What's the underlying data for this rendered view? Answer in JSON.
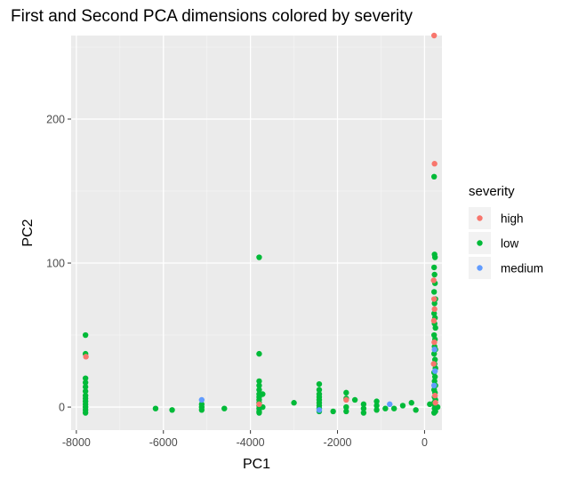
{
  "chart_data": {
    "type": "scatter",
    "title": "First and Second PCA dimensions colored by severity",
    "xlabel": "PC1",
    "ylabel": "PC2",
    "xlim": [
      -8120,
      400
    ],
    "ylim": [
      -16,
      258
    ],
    "x_ticks": [
      -8000,
      -6000,
      -4000,
      -2000,
      0
    ],
    "x_tick_labels": [
      "-8000",
      "-6000",
      "-4000",
      "-2000",
      "0"
    ],
    "y_ticks": [
      0,
      100,
      200
    ],
    "y_tick_labels": [
      "0",
      "100",
      "200"
    ],
    "grid": true,
    "legend": {
      "title": "severity",
      "placement": "right",
      "entries": [
        {
          "label": "high",
          "color": "#F8766D"
        },
        {
          "label": "low",
          "color": "#00BA38"
        },
        {
          "label": "medium",
          "color": "#619CFF"
        }
      ]
    },
    "series": [
      {
        "name": "high",
        "color": "#F8766D",
        "points": [
          [
            220,
            258
          ],
          [
            230,
            169
          ],
          [
            210,
            88
          ],
          [
            220,
            75
          ],
          [
            230,
            68
          ],
          [
            215,
            60
          ],
          [
            225,
            45
          ],
          [
            210,
            30
          ],
          [
            -7780,
            35
          ],
          [
            -1800,
            5
          ],
          [
            -3800,
            2
          ],
          [
            240,
            8
          ],
          [
            250,
            3
          ]
        ]
      },
      {
        "name": "low",
        "color": "#00BA38",
        "points": [
          [
            -7790,
            50
          ],
          [
            -7790,
            37
          ],
          [
            -7790,
            20
          ],
          [
            -7790,
            17
          ],
          [
            -7790,
            14
          ],
          [
            -7790,
            11
          ],
          [
            -7790,
            8
          ],
          [
            -7790,
            6
          ],
          [
            -7790,
            4
          ],
          [
            -7790,
            2
          ],
          [
            -7790,
            0
          ],
          [
            -7790,
            -2
          ],
          [
            -7790,
            -4
          ],
          [
            -6180,
            -1
          ],
          [
            -5800,
            -2
          ],
          [
            -5120,
            2
          ],
          [
            -5120,
            0
          ],
          [
            -5120,
            -2
          ],
          [
            -4600,
            -1
          ],
          [
            -3800,
            104
          ],
          [
            -3800,
            37
          ],
          [
            -3800,
            18
          ],
          [
            -3800,
            15
          ],
          [
            -3800,
            12
          ],
          [
            -3800,
            9
          ],
          [
            -3800,
            7
          ],
          [
            -3800,
            5
          ],
          [
            -3800,
            3
          ],
          [
            -3800,
            1
          ],
          [
            -3800,
            -1
          ],
          [
            -3800,
            -3
          ],
          [
            -3800,
            -4
          ],
          [
            -3720,
            9
          ],
          [
            -3720,
            0
          ],
          [
            -3000,
            3
          ],
          [
            -2420,
            16
          ],
          [
            -2420,
            12
          ],
          [
            -2420,
            9
          ],
          [
            -2420,
            7
          ],
          [
            -2420,
            5
          ],
          [
            -2420,
            3
          ],
          [
            -2420,
            1
          ],
          [
            -2420,
            -1
          ],
          [
            -2420,
            -3
          ],
          [
            -2100,
            -3
          ],
          [
            -1800,
            10
          ],
          [
            -1800,
            6
          ],
          [
            -1800,
            0
          ],
          [
            -1800,
            -3
          ],
          [
            -1600,
            5
          ],
          [
            -1400,
            2
          ],
          [
            -1400,
            -1
          ],
          [
            -1400,
            -4
          ],
          [
            -1100,
            4
          ],
          [
            -1100,
            1
          ],
          [
            -1100,
            -2
          ],
          [
            -900,
            -1
          ],
          [
            -700,
            -1
          ],
          [
            -500,
            1
          ],
          [
            -300,
            3
          ],
          [
            -200,
            -2
          ],
          [
            220,
            160
          ],
          [
            230,
            106
          ],
          [
            240,
            104
          ],
          [
            220,
            97
          ],
          [
            230,
            92
          ],
          [
            240,
            86
          ],
          [
            220,
            80
          ],
          [
            250,
            75
          ],
          [
            230,
            72
          ],
          [
            220,
            65
          ],
          [
            240,
            62
          ],
          [
            230,
            58
          ],
          [
            250,
            55
          ],
          [
            220,
            50
          ],
          [
            240,
            47
          ],
          [
            230,
            42
          ],
          [
            250,
            40
          ],
          [
            220,
            37
          ],
          [
            240,
            33
          ],
          [
            230,
            30
          ],
          [
            250,
            27
          ],
          [
            220,
            24
          ],
          [
            240,
            21
          ],
          [
            230,
            18
          ],
          [
            250,
            15
          ],
          [
            220,
            12
          ],
          [
            240,
            10
          ],
          [
            230,
            7
          ],
          [
            250,
            5
          ],
          [
            220,
            3
          ],
          [
            240,
            1
          ],
          [
            230,
            -1
          ],
          [
            250,
            -3
          ],
          [
            220,
            -4
          ],
          [
            120,
            2
          ],
          [
            300,
            0
          ]
        ]
      },
      {
        "name": "medium",
        "color": "#619CFF",
        "points": [
          [
            -5120,
            5
          ],
          [
            -2420,
            -2
          ],
          [
            -800,
            2
          ],
          [
            230,
            40
          ],
          [
            240,
            25
          ],
          [
            220,
            15
          ]
        ]
      }
    ]
  }
}
